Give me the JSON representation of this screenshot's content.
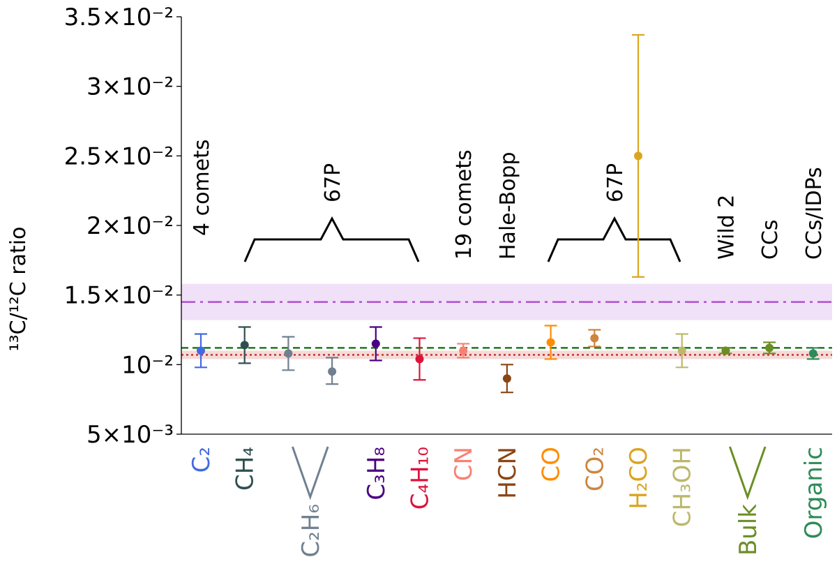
{
  "chart_data": {
    "type": "scatter",
    "ylabel": "¹³C/¹²C ratio",
    "ylim": [
      0.005,
      0.035
    ],
    "yticks": [
      {
        "value": 0.005,
        "label": "5×10⁻³"
      },
      {
        "value": 0.01,
        "label": "10⁻²"
      },
      {
        "value": 0.015,
        "label": "1.5×10⁻²"
      },
      {
        "value": 0.02,
        "label": "2×10⁻²"
      },
      {
        "value": 0.025,
        "label": "2.5×10⁻²"
      },
      {
        "value": 0.03,
        "label": "3×10⁻²"
      },
      {
        "value": 0.035,
        "label": "3.5×10⁻²"
      }
    ],
    "reference_lines": [
      {
        "style": "dash-dot",
        "value": 0.0145,
        "band": [
          0.0132,
          0.0158
        ],
        "color": "#b04fd0",
        "band_color": "#f0e0f8"
      },
      {
        "style": "dashed",
        "value": 0.0112,
        "color": "#1a7a1a"
      },
      {
        "style": "dotted",
        "value": 0.0107,
        "band": [
          0.0104,
          0.011
        ],
        "color": "#c0392b",
        "band_color": "#f6dada"
      }
    ],
    "points": [
      {
        "label": "C₂",
        "x": 1,
        "y": 0.011,
        "err": [
          0.0098,
          0.0122
        ],
        "color": "#4169e1"
      },
      {
        "label": "CH₄",
        "x": 2,
        "y": 0.0114,
        "err": [
          0.0101,
          0.0127
        ],
        "color": "#2f4f4f"
      },
      {
        "label": "C₂H₆",
        "x": 3,
        "y": 0.0108,
        "err": [
          0.0096,
          0.012
        ],
        "color": "#708090"
      },
      {
        "label": "C₂H₆",
        "x": 4,
        "y": 0.0095,
        "err": [
          0.0086,
          0.0105
        ],
        "color": "#708090"
      },
      {
        "label": "C₃H₈",
        "x": 5,
        "y": 0.0115,
        "err": [
          0.0103,
          0.0127
        ],
        "color": "#4b0082"
      },
      {
        "label": "C₄H₁₀",
        "x": 6,
        "y": 0.0104,
        "err": [
          0.0089,
          0.0119
        ],
        "color": "#dc143c"
      },
      {
        "label": "CN",
        "x": 7,
        "y": 0.011,
        "err": [
          0.0105,
          0.0115
        ],
        "color": "#fa8072"
      },
      {
        "label": "HCN",
        "x": 8,
        "y": 0.009,
        "err": [
          0.008,
          0.01
        ],
        "color": "#8b4513"
      },
      {
        "label": "CO",
        "x": 9,
        "y": 0.0116,
        "err": [
          0.0104,
          0.0128
        ],
        "color": "#ff8c00"
      },
      {
        "label": "CO₂",
        "x": 10,
        "y": 0.0119,
        "err": [
          0.0113,
          0.0125
        ],
        "color": "#cd853f"
      },
      {
        "label": "H₂CO",
        "x": 11,
        "y": 0.025,
        "err": [
          0.0163,
          0.0337
        ],
        "color": "#daa520"
      },
      {
        "label": "CH₃OH",
        "x": 12,
        "y": 0.011,
        "err": [
          0.0098,
          0.0122
        ],
        "color": "#bdb76b"
      },
      {
        "label": "Bulk",
        "x": 13,
        "y": 0.011,
        "err": [
          0.0108,
          0.0112
        ],
        "color": "#6b8e23"
      },
      {
        "label": "Bulk",
        "x": 14,
        "y": 0.0112,
        "err": [
          0.0108,
          0.0116
        ],
        "color": "#6b8e23"
      },
      {
        "label": "Organic",
        "x": 15,
        "y": 0.0108,
        "err": [
          0.0104,
          0.0112
        ],
        "color": "#2e8b57"
      }
    ],
    "annotations": [
      {
        "text": "4 comets",
        "x": 1
      },
      {
        "text": "67P",
        "x": 3.5
      },
      {
        "text": "19 comets",
        "x": 7
      },
      {
        "text": "Hale-Bopp",
        "x": 8
      },
      {
        "text": "67P",
        "x": 10
      },
      {
        "text": "Wild 2",
        "x": 13
      },
      {
        "text": "CCs",
        "x": 14
      },
      {
        "text": "CCs/IDPs",
        "x": 15
      }
    ],
    "xticklabels": [
      {
        "text": "C₂",
        "x": 1,
        "color": "#4169e1"
      },
      {
        "text": "CH₄",
        "x": 2,
        "color": "#2f4f4f"
      },
      {
        "text": "C₂H₆",
        "x": 3.5,
        "color": "#708090",
        "fork": true
      },
      {
        "text": "C₃H₈",
        "x": 5,
        "color": "#4b0082"
      },
      {
        "text": "C₄H₁₀",
        "x": 6,
        "color": "#dc143c"
      },
      {
        "text": "CN",
        "x": 7,
        "color": "#fa8072"
      },
      {
        "text": "HCN",
        "x": 8,
        "color": "#8b4513"
      },
      {
        "text": "CO",
        "x": 9,
        "color": "#ff8c00"
      },
      {
        "text": "CO₂",
        "x": 10,
        "color": "#cd853f"
      },
      {
        "text": "H₂CO",
        "x": 11,
        "color": "#daa520"
      },
      {
        "text": "CH₃OH",
        "x": 12,
        "color": "#bdb76b"
      },
      {
        "text": "Bulk",
        "x": 13.5,
        "color": "#6b8e23",
        "fork": true
      },
      {
        "text": "Organic",
        "x": 15,
        "color": "#2e8b57"
      }
    ]
  }
}
